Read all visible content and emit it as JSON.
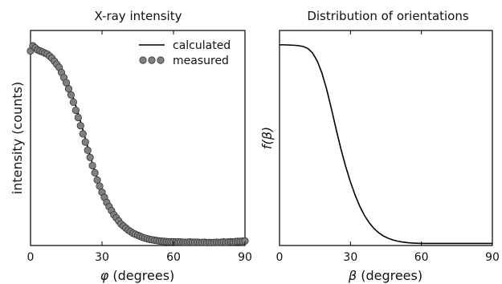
{
  "chart_data": [
    {
      "type": "scatter",
      "title": "X-ray intensity",
      "xlabel_symbol": "φ",
      "xlabel": "(degrees)",
      "ylabel": "intensity (counts)",
      "xlim": [
        0,
        90
      ],
      "ylim": [
        0,
        1.05
      ],
      "xticks": [
        "0",
        "30",
        "60",
        "90"
      ],
      "grid": false,
      "legend_position": "top-right",
      "series": [
        {
          "name": "calculated",
          "kind": "line",
          "color": "#000000",
          "x": [
            0,
            2,
            4,
            6,
            8,
            10,
            12,
            14,
            16,
            18,
            20,
            22,
            24,
            26,
            28,
            30,
            32,
            34,
            36,
            38,
            40,
            42,
            44,
            46,
            48,
            50,
            52,
            54,
            56,
            58,
            60,
            62,
            64,
            66,
            68,
            70,
            72,
            74,
            76,
            78,
            80,
            82,
            84,
            86,
            88,
            90
          ],
          "y": [
            0.96,
            0.955,
            0.95,
            0.94,
            0.925,
            0.905,
            0.875,
            0.835,
            0.785,
            0.72,
            0.645,
            0.565,
            0.48,
            0.4,
            0.33,
            0.265,
            0.21,
            0.165,
            0.13,
            0.1,
            0.08,
            0.063,
            0.05,
            0.04,
            0.033,
            0.028,
            0.024,
            0.021,
            0.019,
            0.018,
            0.017,
            0.016,
            0.016,
            0.016,
            0.016,
            0.016,
            0.016,
            0.016,
            0.016,
            0.016,
            0.017,
            0.017,
            0.018,
            0.019,
            0.02,
            0.02
          ]
        },
        {
          "name": "measured",
          "kind": "markers",
          "color": "#808080",
          "x": [
            0,
            1,
            2,
            3,
            4,
            5,
            6,
            7,
            8,
            9,
            10,
            11,
            12,
            13,
            14,
            15,
            16,
            17,
            18,
            19,
            20,
            21,
            22,
            23,
            24,
            25,
            26,
            27,
            28,
            29,
            30,
            31,
            32,
            33,
            34,
            35,
            36,
            37,
            38,
            39,
            40,
            41,
            42,
            43,
            44,
            45,
            46,
            47,
            48,
            49,
            50,
            51,
            52,
            53,
            54,
            55,
            56,
            57,
            58,
            59,
            60,
            61,
            62,
            63,
            64,
            65,
            66,
            67,
            68,
            69,
            70,
            71,
            72,
            73,
            74,
            75,
            76,
            77,
            78,
            79,
            80,
            81,
            82,
            83,
            84,
            85,
            86,
            87,
            88,
            89,
            90
          ],
          "y": [
            0.95,
            0.975,
            0.965,
            0.955,
            0.95,
            0.945,
            0.94,
            0.935,
            0.925,
            0.915,
            0.9,
            0.885,
            0.87,
            0.845,
            0.82,
            0.795,
            0.765,
            0.735,
            0.7,
            0.66,
            0.625,
            0.585,
            0.545,
            0.505,
            0.465,
            0.43,
            0.39,
            0.355,
            0.32,
            0.29,
            0.26,
            0.235,
            0.21,
            0.19,
            0.17,
            0.15,
            0.135,
            0.12,
            0.105,
            0.095,
            0.085,
            0.075,
            0.068,
            0.06,
            0.055,
            0.05,
            0.045,
            0.04,
            0.036,
            0.033,
            0.03,
            0.028,
            0.026,
            0.024,
            0.022,
            0.021,
            0.02,
            0.019,
            0.018,
            0.018,
            0.018,
            0.017,
            0.017,
            0.017,
            0.016,
            0.016,
            0.016,
            0.017,
            0.016,
            0.016,
            0.016,
            0.015,
            0.015,
            0.016,
            0.014,
            0.015,
            0.014,
            0.015,
            0.016,
            0.015,
            0.016,
            0.017,
            0.016,
            0.017,
            0.018,
            0.017,
            0.019,
            0.02,
            0.02,
            0.021,
            0.022
          ]
        }
      ]
    },
    {
      "type": "line",
      "title": "Distribution of orientations",
      "xlabel_symbol": "β",
      "xlabel": "(degrees)",
      "ylabel_symbol": "f(β)",
      "xlim": [
        0,
        90
      ],
      "ylim": [
        0,
        1.05
      ],
      "xticks": [
        "0",
        "30",
        "60",
        "90"
      ],
      "grid": false,
      "series": [
        {
          "color": "#000000",
          "x": [
            0,
            2,
            4,
            6,
            8,
            10,
            12,
            14,
            16,
            18,
            20,
            22,
            24,
            26,
            28,
            30,
            32,
            34,
            36,
            38,
            40,
            42,
            44,
            46,
            48,
            50,
            52,
            54,
            56,
            58,
            60,
            62,
            64,
            66,
            68,
            70,
            72,
            74,
            76,
            78,
            80,
            82,
            84,
            86,
            88,
            90
          ],
          "y": [
            0.98,
            0.98,
            0.979,
            0.978,
            0.976,
            0.972,
            0.962,
            0.94,
            0.9,
            0.84,
            0.76,
            0.665,
            0.565,
            0.47,
            0.385,
            0.31,
            0.245,
            0.19,
            0.145,
            0.11,
            0.082,
            0.062,
            0.046,
            0.035,
            0.027,
            0.021,
            0.017,
            0.014,
            0.012,
            0.011,
            0.01,
            0.01,
            0.01,
            0.01,
            0.01,
            0.01,
            0.01,
            0.01,
            0.01,
            0.01,
            0.01,
            0.01,
            0.01,
            0.01,
            0.01,
            0.01
          ]
        }
      ]
    }
  ]
}
